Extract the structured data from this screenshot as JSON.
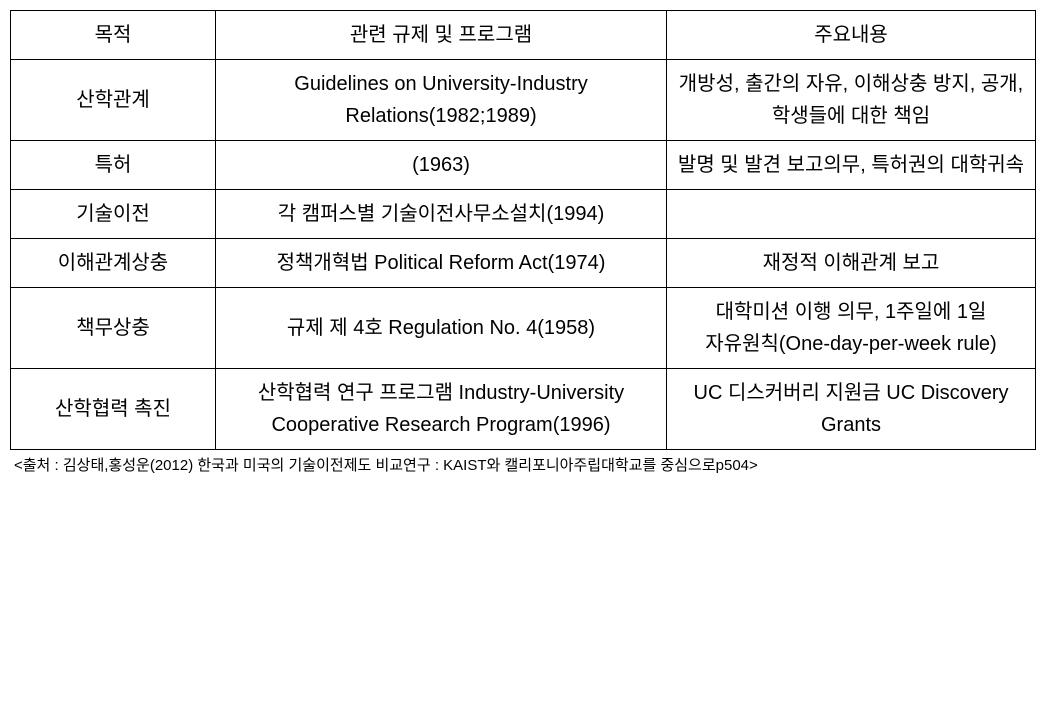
{
  "table": {
    "columns": [
      "목적",
      "관련 규제 및 프로그램",
      "주요내용"
    ],
    "rows": [
      {
        "purpose": "산학관계",
        "regulation": "Guidelines on University-Industry Relations(1982;1989)",
        "content": "개방성, 출간의 자유, 이해상충 방지, 공개, 학생들에 대한 책임"
      },
      {
        "purpose": "특허",
        "regulation": "(1963)",
        "content": "발명 및 발견 보고의무, 특허권의 대학귀속"
      },
      {
        "purpose": "기술이전",
        "regulation": "각 캠퍼스별 기술이전사무소설치(1994)",
        "content": ""
      },
      {
        "purpose": "이해관계상충",
        "regulation": "정책개혁법 Political Reform Act(1974)",
        "content": "재정적 이해관계 보고"
      },
      {
        "purpose": "책무상충",
        "regulation": "규제 제 4호 Regulation No. 4(1958)",
        "content": "대학미션 이행 의무, 1주일에 1일 자유원칙(One-day-per-week rule)"
      },
      {
        "purpose": "산학협력 촉진",
        "regulation": "산학협력 연구 프로그램 Industry-University Cooperative Research Program(1996)",
        "content": "UC 디스커버리 지원금 UC Discovery Grants"
      }
    ]
  },
  "source": "<출처 : 김상태,홍성운(2012) 한국과 미국의 기술이전제도 비교연구 : KAIST와 캘리포니아주립대학교를 중심으로p504>",
  "styling": {
    "font_family": "Malgun Gothic",
    "cell_font_size": 20,
    "source_font_size": 15,
    "border_color": "#000000",
    "background_color": "#ffffff",
    "text_color": "#000000",
    "column_widths_pct": [
      20,
      44,
      36
    ],
    "line_height": 1.6
  }
}
